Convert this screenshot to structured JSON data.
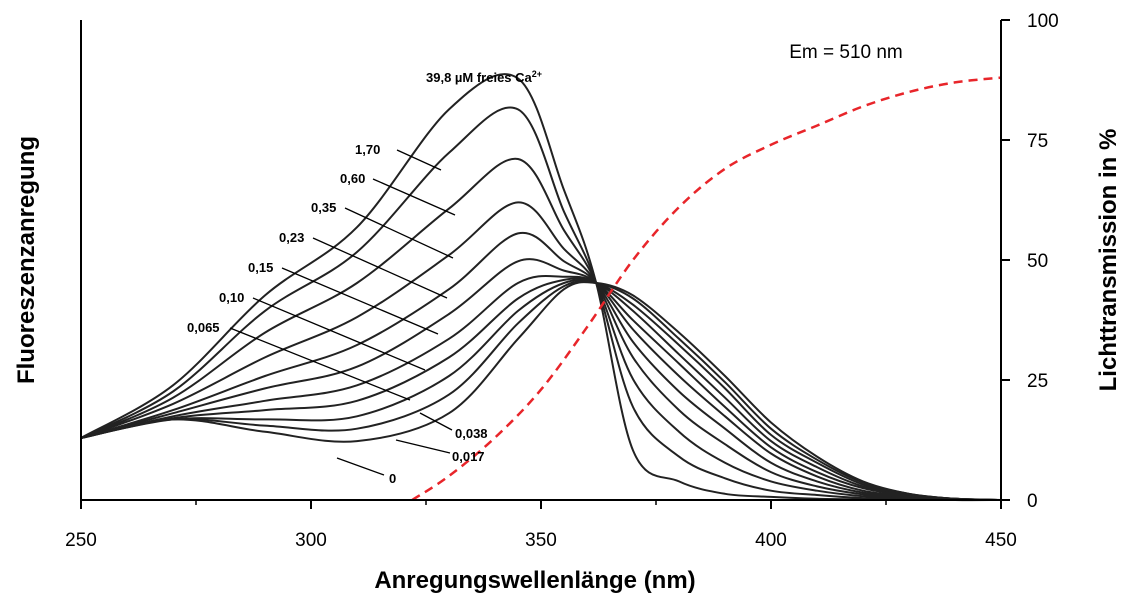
{
  "chart_data": {
    "type": "line",
    "xlabel": "Anregungswellenlänge (nm)",
    "ylabel_left": "Fluoreszenzanregung",
    "ylabel_right": "Lichttransmission in %",
    "xlim": [
      250,
      450
    ],
    "x_ticks": [
      "250",
      "300",
      "350",
      "400",
      "450"
    ],
    "ylim_right": [
      0,
      100
    ],
    "y_right_ticks": [
      "0",
      "25",
      "50",
      "75",
      "100"
    ],
    "annotation": "Em = 510 nm",
    "top_label": {
      "text": "39,8 µM freies Ca",
      "superscript": "2+"
    },
    "concentration_labels": [
      "1,70",
      "0,60",
      "0,35",
      "0,23",
      "0,15",
      "0,10",
      "0,065",
      "0,038",
      "0,017",
      "0"
    ],
    "series": [
      {
        "name": "0",
        "x": [
          250,
          270,
          290,
          310,
          330,
          345,
          355,
          362,
          370,
          380,
          390,
          400,
          410,
          420,
          430,
          440,
          450
        ],
        "y": [
          10,
          13,
          11,
          9.5,
          14,
          26,
          34,
          35,
          33,
          27,
          20,
          12.5,
          7,
          3,
          1,
          0.2,
          0
        ]
      },
      {
        "name": "0,017",
        "x": [
          250,
          270,
          290,
          310,
          330,
          345,
          355,
          362,
          370,
          380,
          390,
          400,
          410,
          420,
          430,
          440,
          450
        ],
        "y": [
          10,
          13,
          12,
          11.5,
          17,
          28.5,
          34.5,
          35,
          32.5,
          26,
          19,
          11.5,
          6.5,
          2.8,
          1,
          0.2,
          0
        ]
      },
      {
        "name": "0,038",
        "x": [
          250,
          270,
          290,
          310,
          330,
          345,
          355,
          362,
          370,
          380,
          390,
          400,
          410,
          420,
          430,
          440,
          450
        ],
        "y": [
          10,
          13,
          13,
          13.5,
          20,
          30.5,
          35,
          35,
          31.5,
          25,
          18,
          10.5,
          6,
          2.5,
          0.9,
          0.2,
          0
        ]
      },
      {
        "name": "0,065",
        "x": [
          250,
          270,
          290,
          310,
          330,
          345,
          355,
          362,
          370,
          380,
          390,
          400,
          410,
          420,
          430,
          440,
          450
        ],
        "y": [
          10,
          13.2,
          14.5,
          16,
          23,
          32.5,
          35.5,
          35,
          30.5,
          23.5,
          16.5,
          9.5,
          5.3,
          2.2,
          0.8,
          0.2,
          0
        ]
      },
      {
        "name": "0,10",
        "x": [
          250,
          270,
          290,
          310,
          330,
          345,
          355,
          362,
          370,
          380,
          390,
          400,
          410,
          420,
          430,
          440,
          450
        ],
        "y": [
          10,
          13.5,
          16,
          18.5,
          26,
          35,
          36,
          35,
          29,
          22,
          15,
          8.5,
          4.5,
          1.9,
          0.7,
          0.1,
          0
        ]
      },
      {
        "name": "0,15",
        "x": [
          250,
          270,
          290,
          310,
          330,
          345,
          355,
          362,
          370,
          380,
          390,
          400,
          410,
          420,
          430,
          440,
          450
        ],
        "y": [
          10,
          14,
          18,
          21.5,
          30,
          38.5,
          37,
          35,
          27.5,
          20,
          13.5,
          7.5,
          3.8,
          1.5,
          0.6,
          0.1,
          0
        ]
      },
      {
        "name": "0,23",
        "x": [
          250,
          270,
          290,
          310,
          330,
          345,
          355,
          362,
          370,
          380,
          390,
          400,
          410,
          420,
          430,
          440,
          450
        ],
        "y": [
          10,
          14.5,
          20,
          25,
          34,
          43,
          38.5,
          35,
          25.5,
          17.5,
          11.5,
          6,
          3,
          1.2,
          0.5,
          0.1,
          0
        ]
      },
      {
        "name": "0,35",
        "x": [
          250,
          270,
          290,
          310,
          330,
          345,
          355,
          362,
          370,
          380,
          390,
          400,
          410,
          420,
          430,
          440,
          450
        ],
        "y": [
          10,
          15.5,
          23,
          29.5,
          39.5,
          48,
          40.5,
          35,
          23,
          14.5,
          9,
          4.5,
          2.2,
          0.9,
          0.3,
          0.1,
          0
        ]
      },
      {
        "name": "0,60",
        "x": [
          250,
          270,
          290,
          310,
          330,
          345,
          355,
          362,
          370,
          380,
          390,
          400,
          410,
          420,
          430,
          440,
          450
        ],
        "y": [
          10,
          16.5,
          27,
          35,
          47,
          55,
          43.5,
          35,
          19.5,
          11,
          6,
          3,
          1.5,
          0.6,
          0.2,
          0,
          0
        ]
      },
      {
        "name": "1,70",
        "x": [
          250,
          270,
          290,
          310,
          330,
          345,
          355,
          362,
          370,
          380,
          390,
          400,
          410,
          420,
          430,
          440,
          450
        ],
        "y": [
          10,
          17.5,
          30.5,
          40,
          56,
          63,
          46.5,
          35,
          15,
          7,
          3.5,
          1.5,
          0.8,
          0.3,
          0.1,
          0,
          0
        ]
      },
      {
        "name": "39,8",
        "x": [
          250,
          270,
          290,
          310,
          330,
          345,
          355,
          362,
          370,
          380,
          390,
          400,
          410,
          420,
          430,
          440,
          450
        ],
        "y": [
          10,
          18.5,
          33,
          44,
          63,
          68,
          50,
          35,
          8,
          3,
          1,
          0.5,
          0.2,
          0.1,
          0,
          0,
          0
        ]
      }
    ],
    "transmission": {
      "x": [
        322,
        330,
        340,
        350,
        360,
        370,
        380,
        390,
        400,
        410,
        420,
        430,
        440,
        450
      ],
      "y": [
        0,
        5,
        13,
        23,
        36,
        50,
        61,
        69,
        74,
        78,
        82,
        85,
        87,
        88
      ]
    },
    "colors": {
      "curve": "#222222",
      "transmission": "#e8252a",
      "axis": "#000000"
    }
  }
}
